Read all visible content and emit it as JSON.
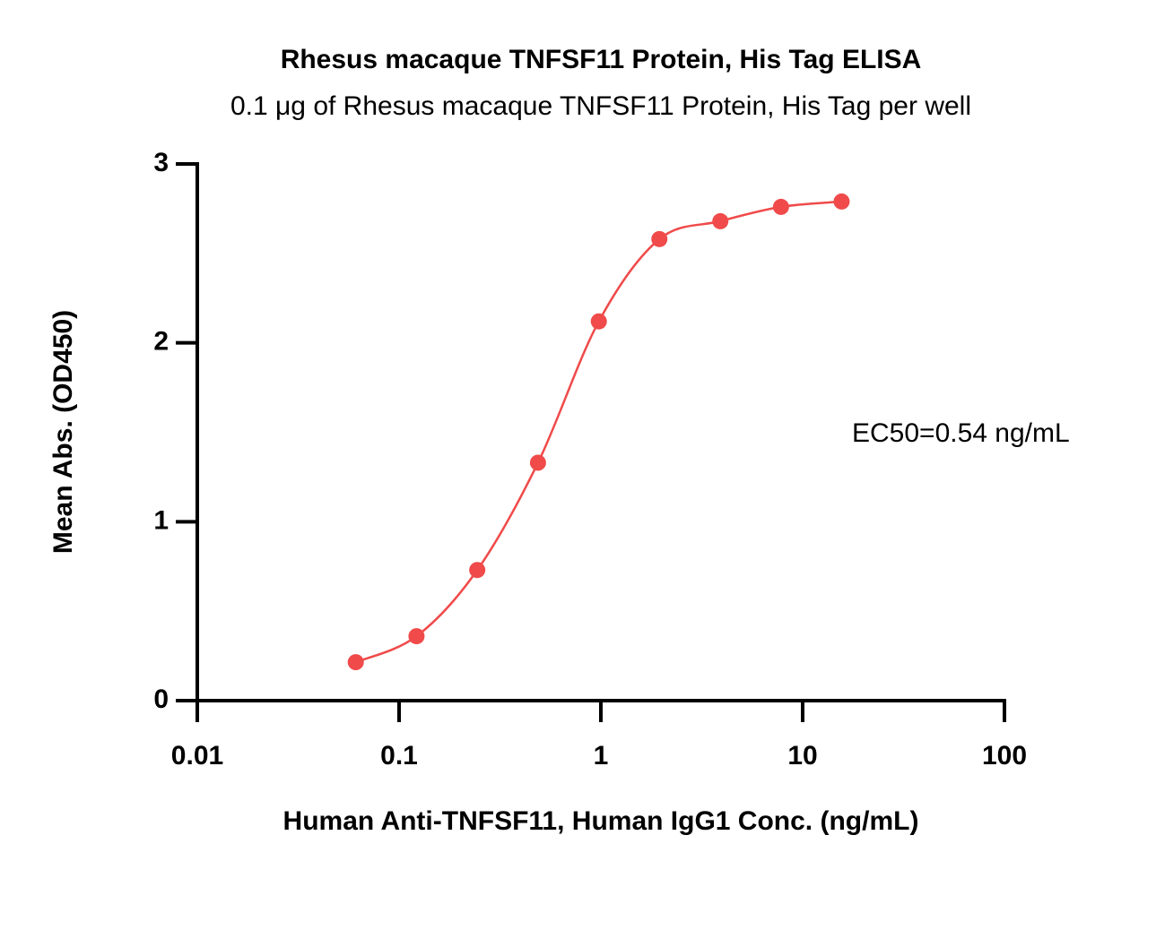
{
  "chart_data": {
    "type": "scatter",
    "title": "Rhesus macaque TNFSF11 Protein, His Tag ELISA",
    "subtitle": "0.1 μg of Rhesus macaque TNFSF11 Protein, His Tag per well",
    "x_label": "Human Anti-TNFSF11, Human IgG1 Conc. (ng/mL)",
    "y_label": "Mean Abs. (OD450)",
    "annotation": "EC50=0.54 ng/mL",
    "x": [
      0.061,
      0.122,
      0.244,
      0.488,
      0.977,
      1.95,
      3.91,
      7.81,
      15.6
    ],
    "values": [
      0.215,
      0.36,
      0.73,
      1.33,
      2.12,
      2.58,
      2.68,
      2.76,
      2.79
    ],
    "color": "#f04a4a",
    "xscale": "log",
    "xlim": [
      0.01,
      100
    ],
    "xticks": [
      0.01,
      0.1,
      1,
      10,
      100
    ],
    "ylim": [
      0,
      3
    ],
    "yticks": [
      0,
      1,
      2,
      3
    ],
    "fit_curve": true
  }
}
